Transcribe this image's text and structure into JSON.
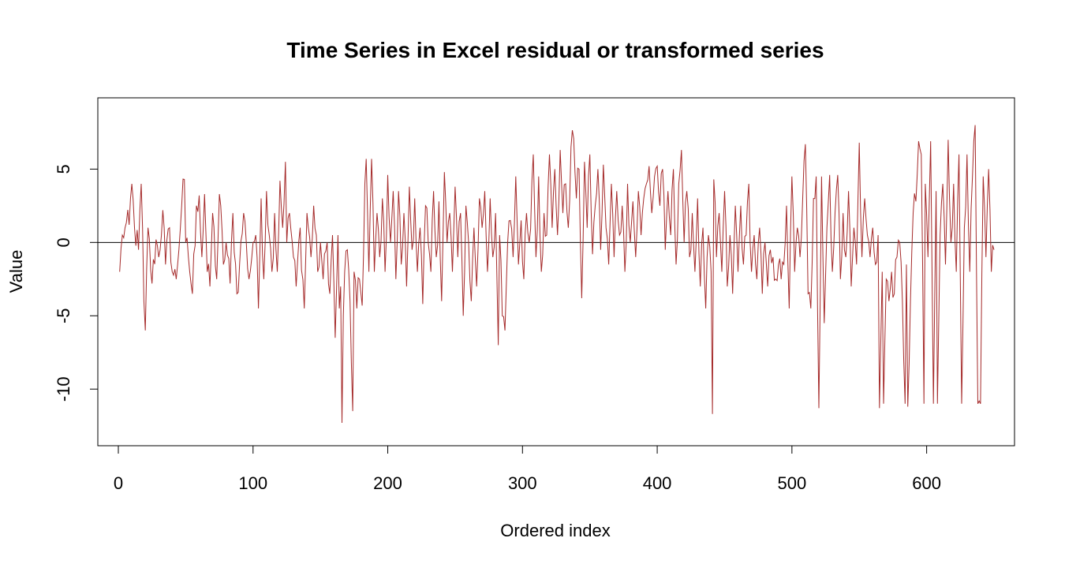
{
  "chart_data": {
    "type": "line",
    "title": "Time Series in Excel residual or transformed series",
    "xlabel": "Ordered index",
    "ylabel": "Value",
    "xlim": [
      0,
      650
    ],
    "ylim": [
      -13,
      9
    ],
    "x_ticks": [
      0,
      100,
      200,
      300,
      400,
      500,
      600
    ],
    "x_tick_labels": [
      "0",
      "100",
      "200",
      "300",
      "400",
      "500",
      "600"
    ],
    "y_ticks": [
      -10,
      -5,
      0,
      5
    ],
    "y_tick_labels": [
      "-10",
      "-5",
      "0",
      "5"
    ],
    "reference_line_y": 0,
    "grid": false,
    "legend": "none",
    "series": [
      {
        "color": "#a52a2a",
        "keypoints": [
          [
            1,
            -2.0
          ],
          [
            3,
            0.5
          ],
          [
            5,
            1.0
          ],
          [
            8,
            1.2
          ],
          [
            10,
            4.0
          ],
          [
            12,
            1.0
          ],
          [
            15,
            -0.5
          ],
          [
            17,
            4.0
          ],
          [
            18,
            1.0
          ],
          [
            19,
            -4.0
          ],
          [
            20,
            -6.0
          ],
          [
            22,
            1.0
          ],
          [
            25,
            -2.8
          ],
          [
            28,
            0.2
          ],
          [
            30,
            -1.0
          ],
          [
            33,
            2.2
          ],
          [
            35,
            -1.5
          ],
          [
            38,
            1.0
          ],
          [
            40,
            -2.0
          ],
          [
            43,
            -2.5
          ],
          [
            47,
            2.5
          ],
          [
            49,
            4.3
          ],
          [
            50,
            0.0
          ],
          [
            52,
            -1.0
          ],
          [
            55,
            -3.5
          ],
          [
            58,
            2.5
          ],
          [
            60,
            3.2
          ],
          [
            62,
            -1.0
          ],
          [
            64,
            3.3
          ],
          [
            66,
            -2.0
          ],
          [
            68,
            -3.0
          ],
          [
            70,
            2.0
          ],
          [
            73,
            -2.5
          ],
          [
            75,
            3.3
          ],
          [
            78,
            -1.5
          ],
          [
            80,
            0.0
          ],
          [
            83,
            -2.8
          ],
          [
            85,
            2.0
          ],
          [
            88,
            -3.5
          ],
          [
            90,
            -1.5
          ],
          [
            93,
            2.0
          ],
          [
            95,
            0.0
          ],
          [
            97,
            -2.5
          ],
          [
            100,
            0.0
          ],
          [
            102,
            0.5
          ],
          [
            104,
            -4.5
          ],
          [
            106,
            3.0
          ],
          [
            108,
            -2.5
          ],
          [
            110,
            3.5
          ],
          [
            112,
            0.5
          ],
          [
            114,
            -2.0
          ],
          [
            116,
            2.0
          ],
          [
            118,
            -2.0
          ],
          [
            120,
            4.2
          ],
          [
            122,
            1.0
          ],
          [
            124,
            5.5
          ],
          [
            125,
            0.0
          ],
          [
            127,
            2.0
          ],
          [
            130,
            -1.0
          ],
          [
            132,
            -3.0
          ],
          [
            135,
            1.0
          ],
          [
            138,
            -4.5
          ],
          [
            140,
            2.0
          ],
          [
            143,
            -1.0
          ],
          [
            145,
            2.5
          ],
          [
            148,
            -2.0
          ],
          [
            150,
            0.0
          ],
          [
            152,
            -2.5
          ],
          [
            155,
            0.0
          ],
          [
            157,
            -3.5
          ],
          [
            159,
            0.5
          ],
          [
            161,
            -6.5
          ],
          [
            163,
            0.5
          ],
          [
            164,
            -4.5
          ],
          [
            165,
            -3.0
          ],
          [
            166,
            -12.3
          ],
          [
            167,
            -5.0
          ],
          [
            168,
            -2.0
          ],
          [
            170,
            -0.5
          ],
          [
            172,
            -4.0
          ],
          [
            174,
            -11.5
          ],
          [
            175,
            -2.0
          ],
          [
            177,
            -4.5
          ],
          [
            179,
            -2.5
          ],
          [
            181,
            -4.3
          ],
          [
            183,
            4.0
          ],
          [
            184,
            5.7
          ],
          [
            186,
            -2.0
          ],
          [
            188,
            5.7
          ],
          [
            190,
            -2.0
          ],
          [
            192,
            2.0
          ],
          [
            194,
            -1.0
          ],
          [
            196,
            3.0
          ],
          [
            198,
            -2.0
          ],
          [
            200,
            4.6
          ],
          [
            202,
            0.0
          ],
          [
            204,
            3.5
          ],
          [
            206,
            -2.5
          ],
          [
            208,
            3.5
          ],
          [
            210,
            -1.5
          ],
          [
            212,
            2.0
          ],
          [
            214,
            -3.0
          ],
          [
            216,
            3.8
          ],
          [
            218,
            -0.5
          ],
          [
            220,
            3.0
          ],
          [
            222,
            -2.0
          ],
          [
            224,
            1.0
          ],
          [
            226,
            -4.2
          ],
          [
            228,
            2.5
          ],
          [
            230,
            0.0
          ],
          [
            232,
            -2.0
          ],
          [
            234,
            3.5
          ],
          [
            236,
            -1.0
          ],
          [
            238,
            2.8
          ],
          [
            240,
            -4.0
          ],
          [
            242,
            4.8
          ],
          [
            244,
            0.0
          ],
          [
            246,
            2.0
          ],
          [
            248,
            -2.0
          ],
          [
            250,
            3.8
          ],
          [
            252,
            -1.0
          ],
          [
            254,
            2.0
          ],
          [
            256,
            -5.0
          ],
          [
            258,
            2.5
          ],
          [
            260,
            0.0
          ],
          [
            262,
            -4.0
          ],
          [
            264,
            1.0
          ],
          [
            266,
            -3.0
          ],
          [
            268,
            3.0
          ],
          [
            270,
            1.0
          ],
          [
            272,
            3.5
          ],
          [
            274,
            -2.0
          ],
          [
            276,
            3.0
          ],
          [
            278,
            -1.0
          ],
          [
            280,
            2.0
          ],
          [
            282,
            -7.0
          ],
          [
            283,
            0.5
          ],
          [
            285,
            -5.0
          ],
          [
            287,
            -6.0
          ],
          [
            289,
            0.0
          ],
          [
            291,
            1.5
          ],
          [
            293,
            -1.0
          ],
          [
            295,
            4.5
          ],
          [
            297,
            -1.5
          ],
          [
            299,
            1.5
          ],
          [
            301,
            -2.5
          ],
          [
            303,
            2.0
          ],
          [
            305,
            0.0
          ],
          [
            308,
            6.0
          ],
          [
            310,
            -1.0
          ],
          [
            312,
            4.5
          ],
          [
            314,
            -2.0
          ],
          [
            316,
            2.0
          ],
          [
            318,
            0.5
          ],
          [
            320,
            6.0
          ],
          [
            322,
            1.0
          ],
          [
            324,
            5.0
          ],
          [
            326,
            0.5
          ],
          [
            328,
            6.3
          ],
          [
            330,
            2.0
          ],
          [
            332,
            4.0
          ],
          [
            334,
            1.0
          ],
          [
            336,
            6.5
          ],
          [
            338,
            7.1
          ],
          [
            340,
            3.0
          ],
          [
            342,
            5.0
          ],
          [
            344,
            -3.8
          ],
          [
            346,
            5.5
          ],
          [
            348,
            1.0
          ],
          [
            350,
            6.0
          ],
          [
            352,
            -0.8
          ],
          [
            354,
            2.5
          ],
          [
            356,
            5.0
          ],
          [
            358,
            -0.5
          ],
          [
            360,
            5.3
          ],
          [
            362,
            1.0
          ],
          [
            364,
            -1.5
          ],
          [
            366,
            4.0
          ],
          [
            368,
            -1.0
          ],
          [
            370,
            3.5
          ],
          [
            372,
            0.5
          ],
          [
            374,
            2.5
          ],
          [
            376,
            -2.0
          ],
          [
            378,
            4.0
          ],
          [
            380,
            0.0
          ],
          [
            382,
            2.8
          ],
          [
            384,
            -1.0
          ],
          [
            386,
            3.5
          ],
          [
            388,
            0.5
          ],
          [
            390,
            3.0
          ],
          [
            392,
            4.0
          ],
          [
            394,
            5.2
          ],
          [
            396,
            2.0
          ],
          [
            398,
            4.5
          ],
          [
            400,
            5.2
          ],
          [
            402,
            2.5
          ],
          [
            404,
            5.0
          ],
          [
            406,
            -0.5
          ],
          [
            408,
            3.5
          ],
          [
            410,
            0.5
          ],
          [
            412,
            5.0
          ],
          [
            414,
            -1.5
          ],
          [
            416,
            4.0
          ],
          [
            418,
            6.3
          ],
          [
            420,
            0.0
          ],
          [
            422,
            3.5
          ],
          [
            424,
            -1.0
          ],
          [
            426,
            2.0
          ],
          [
            428,
            -2.0
          ],
          [
            430,
            3.0
          ],
          [
            432,
            -3.0
          ],
          [
            434,
            1.0
          ],
          [
            436,
            -4.5
          ],
          [
            438,
            0.5
          ],
          [
            440,
            -2.0
          ],
          [
            441,
            -11.7
          ],
          [
            442,
            4.3
          ],
          [
            444,
            -1.0
          ],
          [
            446,
            2.0
          ],
          [
            448,
            -2.0
          ],
          [
            450,
            3.5
          ],
          [
            452,
            -3.0
          ],
          [
            454,
            0.5
          ],
          [
            456,
            -3.5
          ],
          [
            458,
            2.5
          ],
          [
            460,
            -2.0
          ],
          [
            462,
            2.5
          ],
          [
            464,
            -1.5
          ],
          [
            466,
            0.5
          ],
          [
            468,
            4.0
          ],
          [
            470,
            -2.0
          ],
          [
            472,
            0.5
          ],
          [
            474,
            -2.5
          ],
          [
            476,
            1.0
          ],
          [
            478,
            -3.5
          ],
          [
            480,
            0.0
          ],
          [
            482,
            -3.0
          ],
          [
            484,
            -0.5
          ],
          [
            486,
            -1.0
          ],
          [
            488,
            -2.5
          ],
          [
            490,
            -1.5
          ],
          [
            492,
            -2.5
          ],
          [
            494,
            -1.5
          ],
          [
            496,
            2.5
          ],
          [
            498,
            -4.5
          ],
          [
            500,
            4.5
          ],
          [
            502,
            -2.0
          ],
          [
            504,
            1.0
          ],
          [
            506,
            -1.0
          ],
          [
            508,
            3.0
          ],
          [
            510,
            6.7
          ],
          [
            512,
            -3.5
          ],
          [
            514,
            -4.5
          ],
          [
            516,
            3.0
          ],
          [
            518,
            4.5
          ],
          [
            520,
            -11.3
          ],
          [
            522,
            4.5
          ],
          [
            524,
            -5.5
          ],
          [
            526,
            1.0
          ],
          [
            528,
            4.6
          ],
          [
            530,
            -2.0
          ],
          [
            532,
            2.0
          ],
          [
            534,
            4.6
          ],
          [
            536,
            -2.5
          ],
          [
            538,
            2.0
          ],
          [
            540,
            -1.0
          ],
          [
            542,
            3.5
          ],
          [
            544,
            -3.0
          ],
          [
            546,
            1.0
          ],
          [
            548,
            -1.5
          ],
          [
            550,
            6.8
          ],
          [
            552,
            -1.0
          ],
          [
            554,
            3.0
          ],
          [
            556,
            0.5
          ],
          [
            558,
            -1.0
          ],
          [
            560,
            1.0
          ],
          [
            562,
            -1.5
          ],
          [
            564,
            0.5
          ],
          [
            565,
            -11.3
          ],
          [
            567,
            -2.0
          ],
          [
            568,
            -11.0
          ],
          [
            570,
            -2.5
          ],
          [
            572,
            -4.0
          ],
          [
            574,
            -2.0
          ],
          [
            576,
            -3.5
          ],
          [
            578,
            -1.0
          ],
          [
            580,
            0.0
          ],
          [
            582,
            -4.0
          ],
          [
            584,
            -11.0
          ],
          [
            585,
            -1.5
          ],
          [
            586,
            -11.2
          ],
          [
            588,
            -4.0
          ],
          [
            590,
            2.0
          ],
          [
            592,
            2.8
          ],
          [
            594,
            6.9
          ],
          [
            596,
            6.0
          ],
          [
            598,
            -11.0
          ],
          [
            599,
            4.0
          ],
          [
            601,
            -1.0
          ],
          [
            603,
            6.9
          ],
          [
            605,
            -11.0
          ],
          [
            607,
            3.5
          ],
          [
            608,
            -11.0
          ],
          [
            610,
            0.5
          ],
          [
            612,
            4.0
          ],
          [
            614,
            -1.5
          ],
          [
            616,
            7.0
          ],
          [
            618,
            0.0
          ],
          [
            620,
            4.0
          ],
          [
            622,
            -2.0
          ],
          [
            624,
            6.0
          ],
          [
            626,
            -11.0
          ],
          [
            628,
            1.0
          ],
          [
            630,
            6.0
          ],
          [
            632,
            -2.0
          ],
          [
            634,
            4.5
          ],
          [
            636,
            8.0
          ],
          [
            637,
            -2.0
          ],
          [
            638,
            -11.0
          ],
          [
            640,
            -11.0
          ],
          [
            642,
            4.5
          ],
          [
            644,
            -1.0
          ],
          [
            646,
            5.0
          ],
          [
            648,
            -2.0
          ],
          [
            650,
            -0.5
          ]
        ]
      }
    ]
  }
}
